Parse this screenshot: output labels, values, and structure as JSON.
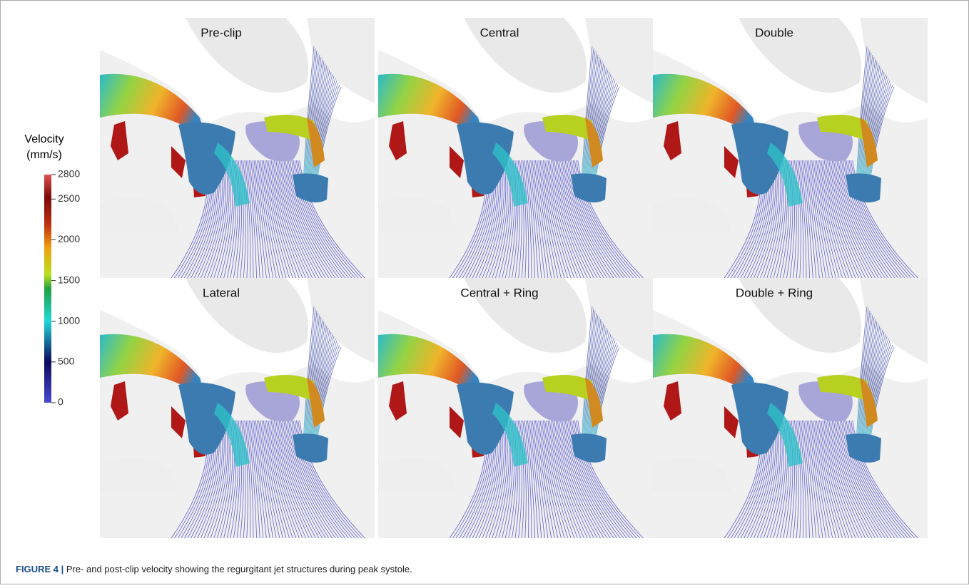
{
  "panels": [
    {
      "title": "Pre-clip"
    },
    {
      "title": "Central"
    },
    {
      "title": "Double"
    },
    {
      "title": "Lateral"
    },
    {
      "title": "Central + Ring"
    },
    {
      "title": "Double + Ring"
    }
  ],
  "colorbar": {
    "title": "Velocity",
    "unit": "(mm/s)",
    "lim": [
      0,
      2800
    ],
    "ticks": [
      0,
      500,
      1000,
      1500,
      2000,
      2500,
      2800
    ]
  },
  "caption": {
    "label": "FIGURE 4 |",
    "text": "Pre- and post-clip velocity showing the regurgitant jet structures during peak systole."
  }
}
